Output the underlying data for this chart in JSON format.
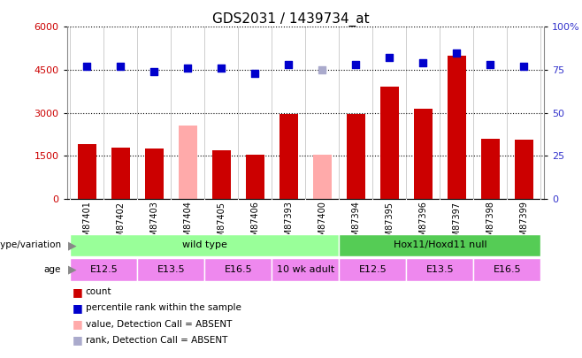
{
  "title": "GDS2031 / 1439734_at",
  "samples": [
    "GSM87401",
    "GSM87402",
    "GSM87403",
    "GSM87404",
    "GSM87405",
    "GSM87406",
    "GSM87393",
    "GSM87400",
    "GSM87394",
    "GSM87395",
    "GSM87396",
    "GSM87397",
    "GSM87398",
    "GSM87399"
  ],
  "counts": [
    1900,
    1780,
    1750,
    2550,
    1700,
    1550,
    2950,
    1550,
    2950,
    3900,
    3150,
    5000,
    2100,
    2050
  ],
  "counts_absent": [
    false,
    false,
    false,
    true,
    false,
    false,
    false,
    true,
    false,
    false,
    false,
    false,
    false,
    false
  ],
  "percentile_ranks": [
    77,
    77,
    74,
    76,
    76,
    73,
    78,
    75,
    78,
    82,
    79,
    85,
    78,
    77
  ],
  "ranks_absent": [
    false,
    false,
    false,
    false,
    false,
    false,
    false,
    true,
    false,
    false,
    false,
    false,
    false,
    false
  ],
  "ylim_left": [
    0,
    6000
  ],
  "ylim_right": [
    0,
    100
  ],
  "yticks_left": [
    0,
    1500,
    3000,
    4500,
    6000
  ],
  "yticks_right": [
    0,
    25,
    50,
    75,
    100
  ],
  "bar_color_normal": "#cc0000",
  "bar_color_absent": "#ffaaaa",
  "dot_color_normal": "#0000cc",
  "dot_color_absent": "#aaaacc",
  "genotype_groups": [
    {
      "label": "wild type",
      "start": 0,
      "end": 8,
      "color": "#99ff99"
    },
    {
      "label": "Hox11/Hoxd11 null",
      "start": 8,
      "end": 14,
      "color": "#55cc55"
    }
  ],
  "age_groups": [
    {
      "label": "E12.5",
      "start": 0,
      "end": 2,
      "color": "#ee88ee"
    },
    {
      "label": "E13.5",
      "start": 2,
      "end": 4,
      "color": "#ee88ee"
    },
    {
      "label": "E16.5",
      "start": 4,
      "end": 6,
      "color": "#ee88ee"
    },
    {
      "label": "10 wk adult",
      "start": 6,
      "end": 8,
      "color": "#ee88ee"
    },
    {
      "label": "E12.5",
      "start": 8,
      "end": 10,
      "color": "#ee88ee"
    },
    {
      "label": "E13.5",
      "start": 10,
      "end": 12,
      "color": "#ee88ee"
    },
    {
      "label": "E16.5",
      "start": 12,
      "end": 14,
      "color": "#ee88ee"
    }
  ],
  "legend_items": [
    {
      "label": "count",
      "color": "#cc0000"
    },
    {
      "label": "percentile rank within the sample",
      "color": "#0000cc"
    },
    {
      "label": "value, Detection Call = ABSENT",
      "color": "#ffaaaa"
    },
    {
      "label": "rank, Detection Call = ABSENT",
      "color": "#aaaacc"
    }
  ],
  "bar_width": 0.55,
  "dot_size": 35,
  "xlabel_fontsize": 7,
  "ylabel_fontsize": 8,
  "title_fontsize": 11
}
